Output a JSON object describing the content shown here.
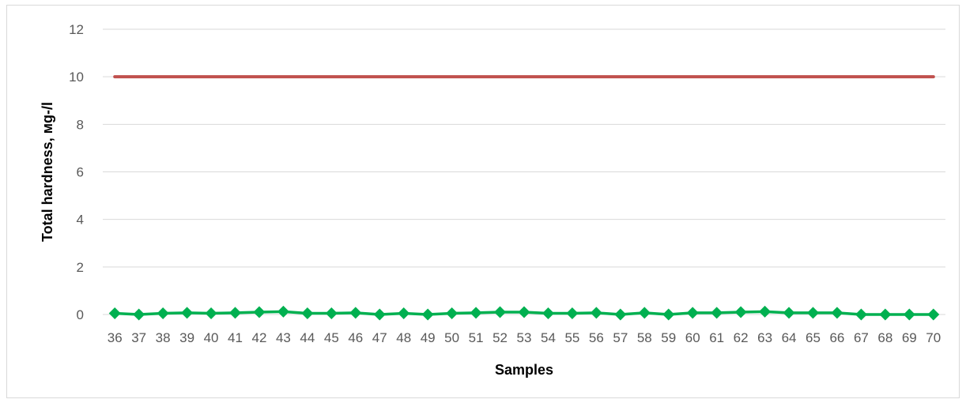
{
  "chart_data": {
    "type": "line",
    "title": "",
    "xlabel": "Samples",
    "ylabel": "Total hardness, мg-/l",
    "ylim": [
      0,
      12
    ],
    "yticks": [
      0,
      2,
      4,
      6,
      8,
      10,
      12
    ],
    "grid": true,
    "legend": "none",
    "categories": [
      "36",
      "37",
      "38",
      "39",
      "40",
      "41",
      "42",
      "43",
      "44",
      "45",
      "46",
      "47",
      "48",
      "49",
      "50",
      "51",
      "52",
      "53",
      "54",
      "55",
      "56",
      "57",
      "58",
      "59",
      "60",
      "61",
      "62",
      "63",
      "64",
      "65",
      "66",
      "67",
      "68",
      "69",
      "70"
    ],
    "series": [
      {
        "color": "#c0504d",
        "marker": "none",
        "values": [
          10,
          10,
          10,
          10,
          10,
          10,
          10,
          10,
          10,
          10,
          10,
          10,
          10,
          10,
          10,
          10,
          10,
          10,
          10,
          10,
          10,
          10,
          10,
          10,
          10,
          10,
          10,
          10,
          10,
          10,
          10,
          10,
          10,
          10,
          10
        ]
      },
      {
        "color": "#00b050",
        "marker": "diamond",
        "values": [
          0.05,
          0,
          0.05,
          0.07,
          0.05,
          0.07,
          0.1,
          0.12,
          0.05,
          0.05,
          0.07,
          0,
          0.05,
          0,
          0.05,
          0.07,
          0.1,
          0.1,
          0.05,
          0.05,
          0.07,
          0,
          0.07,
          0,
          0.07,
          0.07,
          0.1,
          0.12,
          0.07,
          0.07,
          0.07,
          0,
          0,
          0,
          0
        ]
      }
    ]
  }
}
